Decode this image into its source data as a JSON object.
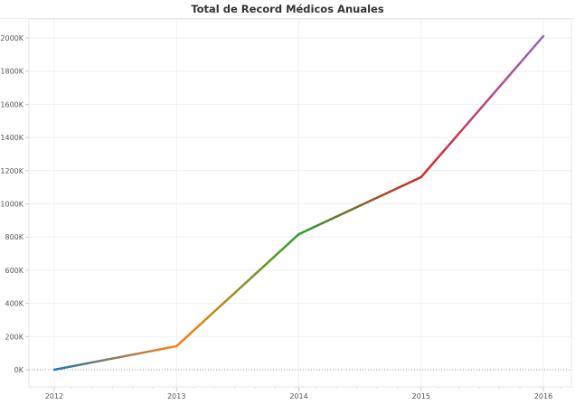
{
  "chart_data": {
    "type": "line",
    "title": "Total de Record Médicos Anuales",
    "xlabel": "",
    "ylabel": "",
    "categories": [
      "2012",
      "2013",
      "2014",
      "2015",
      "2016"
    ],
    "values": [
      0,
      142000,
      817000,
      1161000,
      2011000
    ],
    "segment_colors": [
      "#1f77b4",
      "#ff7f0e",
      "#2ca02c",
      "#d62728",
      "#9467bd"
    ],
    "y_ticks": [
      "0K",
      "200K",
      "400K",
      "600K",
      "800K",
      "1000K",
      "1200K",
      "1400K",
      "1600K",
      "1800K",
      "2000K"
    ],
    "x_ticks": [
      "2012",
      "2013",
      "2014",
      "2015",
      "2016"
    ],
    "ylim": [
      -100000,
      2100000
    ],
    "grid": true,
    "zero_line": "dotted",
    "legend": "none"
  }
}
